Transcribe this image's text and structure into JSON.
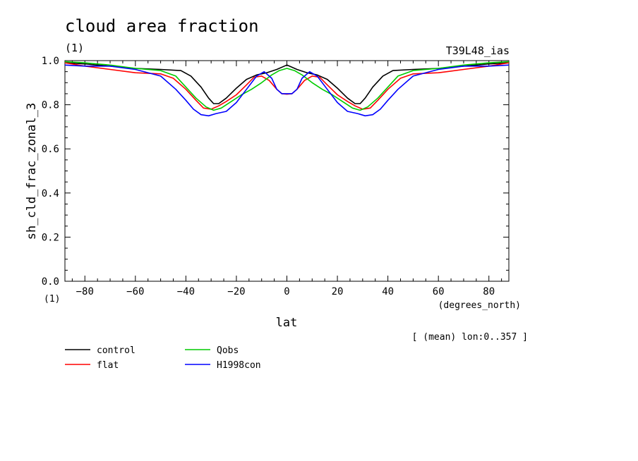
{
  "chart_data": {
    "type": "line",
    "title": "cloud area fraction",
    "title_units": "(1)",
    "run_label": "T39L48_ias",
    "ylabel": "sh_cld_frac_zonal_3",
    "xlabel": "lat",
    "x_units": "(degrees_north)",
    "y_units": "(1)",
    "averaging_note": "[ (mean) lon:0..357 ]",
    "xlim": [
      -87.9,
      87.9
    ],
    "ylim": [
      0.0,
      1.0
    ],
    "x_ticks": [
      -80,
      -60,
      -40,
      -20,
      0,
      20,
      40,
      60,
      80
    ],
    "x_tick_labels": [
      "−80",
      "−60",
      "−40",
      "−20",
      "0",
      "20",
      "40",
      "60",
      "80"
    ],
    "y_ticks": [
      0.0,
      0.2,
      0.4,
      0.6,
      0.8,
      1.0
    ],
    "y_tick_labels": [
      "0.0",
      "0.2",
      "0.4",
      "0.6",
      "0.8",
      "1.0"
    ],
    "grid": false,
    "legend_position": "bottom-left",
    "series": [
      {
        "name": "control",
        "color": "#000000",
        "x": [
          -87.9,
          -80,
          -70,
          -60,
          -50,
          -42,
          -38,
          -34,
          -31,
          -29,
          -27,
          -24,
          -20,
          -16,
          -12,
          -8,
          -4,
          -1,
          0,
          1,
          4,
          8,
          12,
          16,
          20,
          24,
          27,
          29,
          31,
          34,
          38,
          42,
          50,
          60,
          70,
          80,
          87.9
        ],
        "y": [
          0.99,
          0.985,
          0.975,
          0.965,
          0.96,
          0.955,
          0.93,
          0.88,
          0.83,
          0.805,
          0.805,
          0.83,
          0.875,
          0.915,
          0.935,
          0.945,
          0.96,
          0.975,
          0.98,
          0.975,
          0.96,
          0.945,
          0.935,
          0.915,
          0.875,
          0.83,
          0.805,
          0.805,
          0.83,
          0.88,
          0.93,
          0.955,
          0.96,
          0.965,
          0.975,
          0.985,
          0.99
        ]
      },
      {
        "name": "flat",
        "color": "#ff0000",
        "x": [
          -87.9,
          -80,
          -70,
          -60,
          -50,
          -45,
          -40,
          -36,
          -33,
          -30,
          -27,
          -24,
          -20,
          -16,
          -13,
          -10,
          -7,
          -4,
          -2,
          0,
          2,
          4,
          7,
          10,
          13,
          16,
          20,
          24,
          27,
          30,
          33,
          36,
          40,
          45,
          50,
          60,
          70,
          80,
          87.9
        ],
        "y": [
          0.99,
          0.975,
          0.96,
          0.945,
          0.94,
          0.92,
          0.87,
          0.82,
          0.785,
          0.78,
          0.795,
          0.815,
          0.845,
          0.89,
          0.925,
          0.93,
          0.91,
          0.87,
          0.85,
          0.848,
          0.85,
          0.87,
          0.91,
          0.93,
          0.925,
          0.89,
          0.845,
          0.815,
          0.795,
          0.78,
          0.785,
          0.82,
          0.87,
          0.92,
          0.94,
          0.945,
          0.96,
          0.975,
          0.99
        ]
      },
      {
        "name": "Qobs",
        "color": "#00cc00",
        "x": [
          -87.9,
          -80,
          -70,
          -60,
          -50,
          -44,
          -40,
          -36,
          -32,
          -29,
          -26,
          -22,
          -18,
          -14,
          -10,
          -6,
          -3,
          0,
          3,
          6,
          10,
          14,
          18,
          22,
          26,
          29,
          32,
          36,
          40,
          44,
          50,
          60,
          70,
          80,
          87.9
        ],
        "y": [
          0.995,
          0.99,
          0.98,
          0.965,
          0.955,
          0.93,
          0.88,
          0.83,
          0.79,
          0.775,
          0.785,
          0.815,
          0.845,
          0.87,
          0.9,
          0.935,
          0.955,
          0.965,
          0.955,
          0.935,
          0.9,
          0.87,
          0.845,
          0.815,
          0.785,
          0.775,
          0.79,
          0.83,
          0.88,
          0.93,
          0.955,
          0.965,
          0.98,
          0.99,
          0.995
        ]
      },
      {
        "name": "H1998con",
        "color": "#0000ff",
        "x": [
          -87.9,
          -80,
          -70,
          -60,
          -50,
          -44,
          -40,
          -37,
          -34,
          -31,
          -28,
          -24,
          -20,
          -16,
          -12,
          -9,
          -6,
          -4,
          -2,
          0,
          2,
          4,
          6,
          9,
          12,
          16,
          20,
          24,
          28,
          31,
          34,
          37,
          40,
          44,
          50,
          60,
          70,
          80,
          87.9
        ],
        "y": [
          0.98,
          0.975,
          0.975,
          0.96,
          0.93,
          0.87,
          0.82,
          0.78,
          0.755,
          0.75,
          0.76,
          0.77,
          0.81,
          0.87,
          0.93,
          0.95,
          0.92,
          0.87,
          0.85,
          0.85,
          0.85,
          0.87,
          0.92,
          0.95,
          0.93,
          0.87,
          0.81,
          0.77,
          0.76,
          0.75,
          0.755,
          0.78,
          0.82,
          0.87,
          0.93,
          0.96,
          0.975,
          0.975,
          0.98
        ]
      }
    ]
  }
}
